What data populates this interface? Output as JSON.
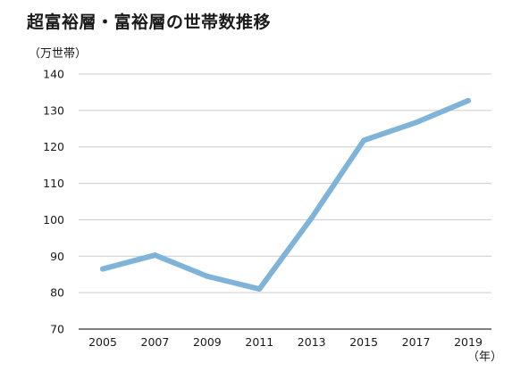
{
  "chart_data": {
    "type": "line",
    "title": "超富裕層・富裕層の世帯数推移",
    "ylabel": "（万世帯）",
    "xlabel": "（年）",
    "x": [
      "2005",
      "2007",
      "2009",
      "2011",
      "2013",
      "2015",
      "2017",
      "2019"
    ],
    "series": [
      {
        "values": [
          86.5,
          90.3,
          84.5,
          81.0,
          100.5,
          121.8,
          126.7,
          132.7
        ]
      }
    ],
    "ylim": [
      70,
      140
    ],
    "yticks": [
      "70",
      "80",
      "90",
      "100",
      "110",
      "120",
      "130",
      "140"
    ],
    "grid": true,
    "line_color": "#7fb4d8",
    "grid_color": "#cccccc",
    "axis_color": "#333333"
  }
}
